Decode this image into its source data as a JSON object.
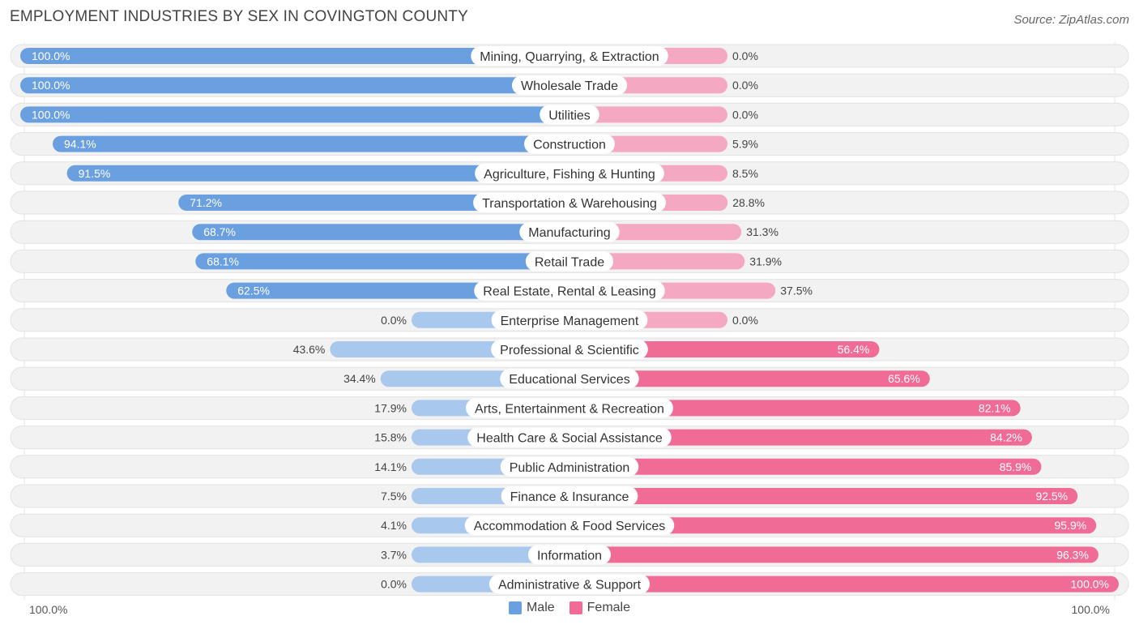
{
  "chart_data": {
    "type": "bar",
    "orientation": "horizontal-diverging",
    "title": "EMPLOYMENT INDUSTRIES BY SEX IN COVINGTON COUNTY",
    "source": "Source: ZipAtlas.com",
    "categories": [
      "Mining, Quarrying, & Extraction",
      "Wholesale Trade",
      "Utilities",
      "Construction",
      "Agriculture, Fishing & Hunting",
      "Transportation & Warehousing",
      "Manufacturing",
      "Retail Trade",
      "Real Estate, Rental & Leasing",
      "Enterprise Management",
      "Professional & Scientific",
      "Educational Services",
      "Arts, Entertainment & Recreation",
      "Health Care & Social Assistance",
      "Public Administration",
      "Finance & Insurance",
      "Accommodation & Food Services",
      "Information",
      "Administrative & Support"
    ],
    "series": [
      {
        "name": "Male",
        "color": "#6a9fe0",
        "light_color": "#a9c8ee",
        "values": [
          100.0,
          100.0,
          100.0,
          94.1,
          91.5,
          71.2,
          68.7,
          68.1,
          62.5,
          0.0,
          43.6,
          34.4,
          17.9,
          15.8,
          14.1,
          7.5,
          4.1,
          3.7,
          0.0
        ],
        "labels": [
          "100.0%",
          "100.0%",
          "100.0%",
          "94.1%",
          "91.5%",
          "71.2%",
          "68.7%",
          "68.1%",
          "62.5%",
          "0.0%",
          "43.6%",
          "34.4%",
          "17.9%",
          "15.8%",
          "14.1%",
          "7.5%",
          "4.1%",
          "3.7%",
          "0.0%"
        ]
      },
      {
        "name": "Female",
        "color": "#f06b96",
        "light_color": "#f5a8c2",
        "values": [
          0.0,
          0.0,
          0.0,
          5.9,
          8.5,
          28.8,
          31.3,
          31.9,
          37.5,
          0.0,
          56.4,
          65.6,
          82.1,
          84.2,
          85.9,
          92.5,
          95.9,
          96.3,
          100.0
        ],
        "labels": [
          "0.0%",
          "0.0%",
          "0.0%",
          "5.9%",
          "8.5%",
          "28.8%",
          "31.3%",
          "31.9%",
          "37.5%",
          "0.0%",
          "56.4%",
          "65.6%",
          "82.1%",
          "84.2%",
          "85.9%",
          "92.5%",
          "95.9%",
          "96.3%",
          "100.0%"
        ]
      }
    ],
    "xlim": [
      -100,
      100
    ],
    "axis_left_label": "100.0%",
    "axis_right_label": "100.0%",
    "legend_position": "bottom-center"
  }
}
